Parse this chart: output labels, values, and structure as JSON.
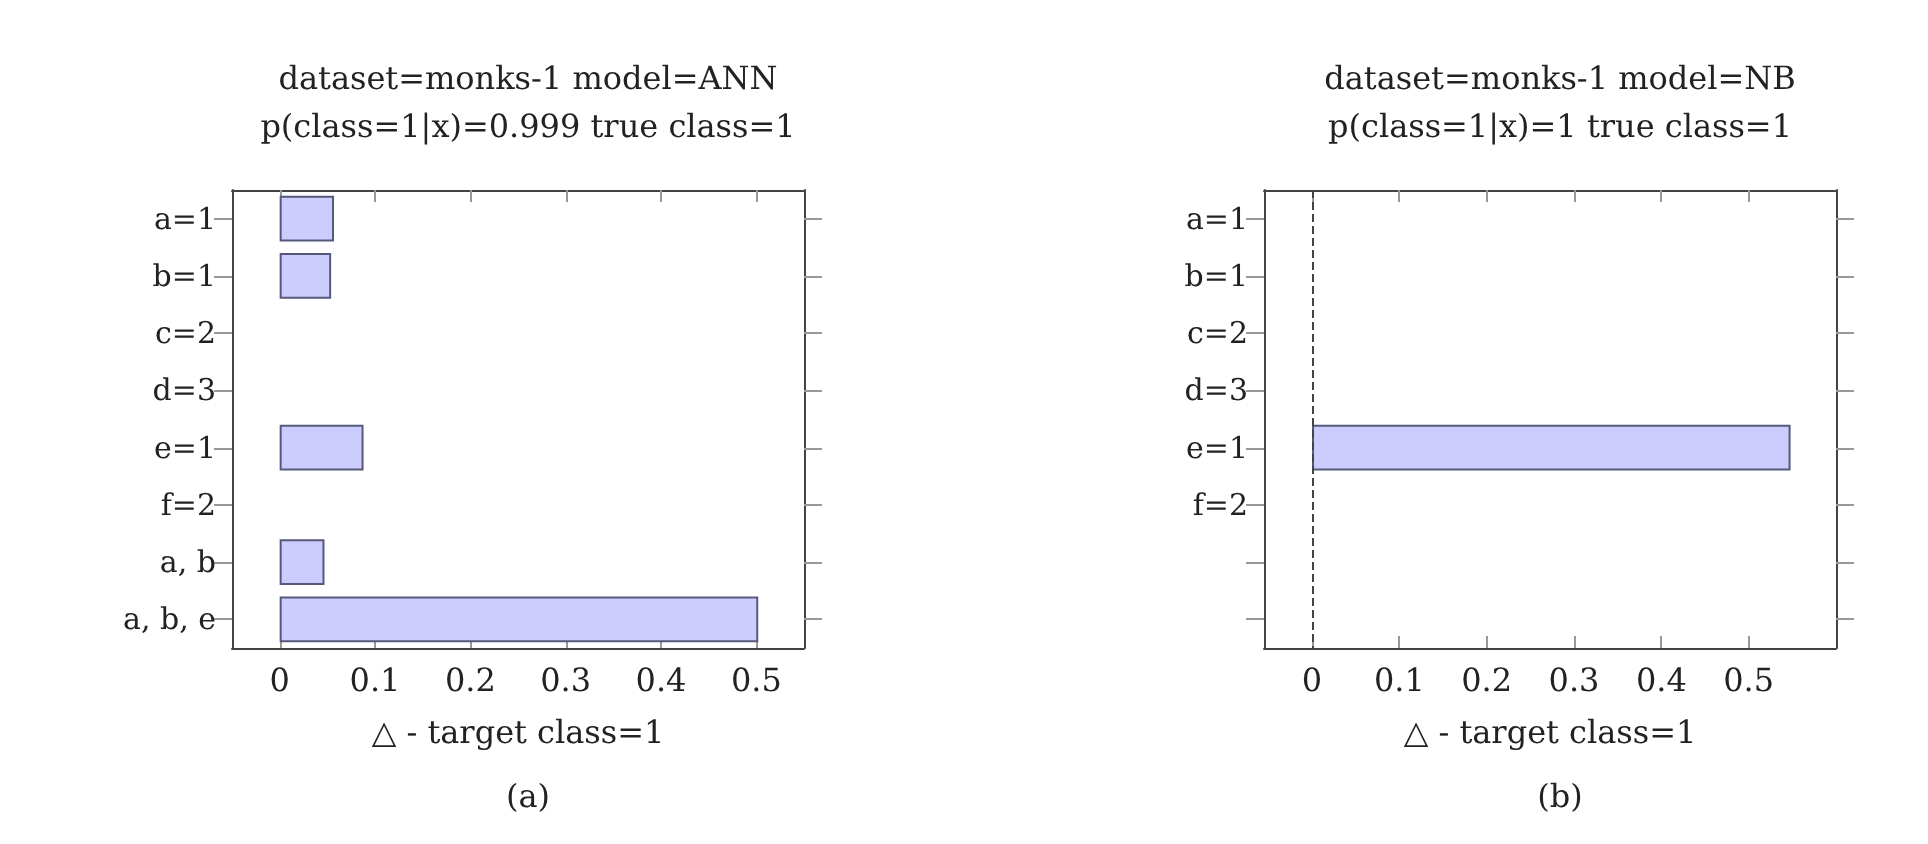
{
  "chart_data": [
    {
      "type": "bar",
      "orientation": "horizontal",
      "title": "dataset=monks-1 model=ANN",
      "subtitle": "p(class=1|x)=0.999 true class=1",
      "xlabel": "△ - target class=1",
      "categories": [
        "a=1",
        "b=1",
        "c=2",
        "d=3",
        "e=1",
        "f=2",
        "a, b",
        "a, b, e"
      ],
      "values": [
        0.057,
        0.054,
        0,
        0,
        0.088,
        0,
        0.047,
        0.502
      ],
      "color": "#ccccff",
      "xlim": [
        -0.05,
        0.55
      ],
      "xticks": [
        0,
        0.1,
        0.2,
        0.3,
        0.4,
        0.5
      ],
      "grid": false,
      "annotations": [
        "(a)"
      ]
    },
    {
      "type": "bar",
      "orientation": "horizontal",
      "title": "dataset=monks-1 model=NB",
      "subtitle": "p(class=1|x)=1 true class=1",
      "xlabel": "△ - target class=1",
      "categories": [
        "a=1",
        "b=1",
        "c=2",
        "d=3",
        "e=1",
        "f=2",
        null,
        null
      ],
      "values": [
        0,
        0,
        0,
        0,
        0.548,
        0,
        null,
        null
      ],
      "color": "#ccccff",
      "xlim": [
        -0.055,
        0.6
      ],
      "xticks": [
        0,
        0.1,
        0.2,
        0.3,
        0.4,
        0.5
      ],
      "grid": false,
      "annotations": [
        "(b)"
      ],
      "ref_lines": [
        {
          "axis": "x",
          "value": 0,
          "line_style": "dashed"
        }
      ]
    }
  ]
}
